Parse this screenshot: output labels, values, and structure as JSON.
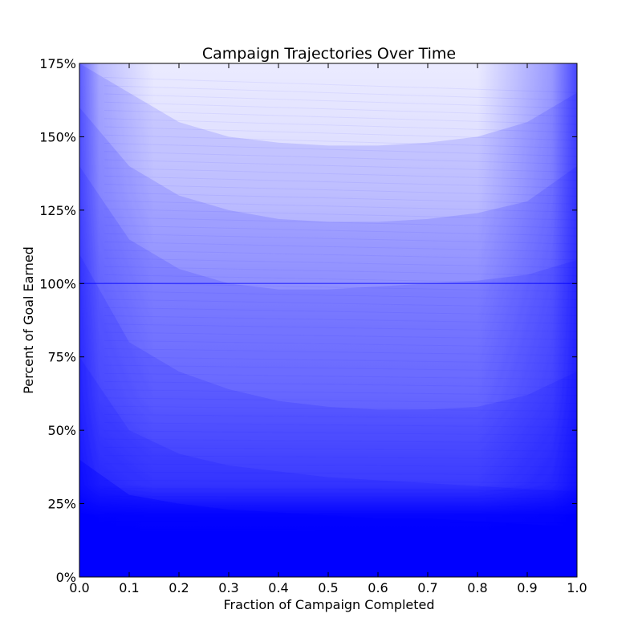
{
  "chart_data": {
    "type": "line",
    "title": "Campaign Trajectories Over Time",
    "xlabel": "Fraction of Campaign Completed",
    "ylabel": "Percent of Goal Earned",
    "xlim": [
      0.0,
      1.0
    ],
    "ylim": [
      0,
      175
    ],
    "x_ticks": [
      0.0,
      0.1,
      0.2,
      0.3,
      0.4,
      0.5,
      0.6,
      0.7,
      0.8,
      0.9,
      1.0
    ],
    "x_tick_labels": [
      "0.0",
      "0.1",
      "0.2",
      "0.3",
      "0.4",
      "0.5",
      "0.6",
      "0.7",
      "0.8",
      "0.9",
      "1.0"
    ],
    "y_ticks": [
      0,
      25,
      50,
      75,
      100,
      125,
      150,
      175
    ],
    "y_tick_labels": [
      "0%",
      "25%",
      "50%",
      "75%",
      "100%",
      "125%",
      "150%",
      "175%"
    ],
    "grid": false,
    "legend": "none",
    "series_color": "#0000ff",
    "reference_line": 100,
    "bands": [
      {
        "x": [
          0.0,
          0.1,
          0.2,
          0.3,
          0.4,
          0.5,
          0.6,
          0.7,
          0.8,
          0.9,
          1.0
        ],
        "y": [
          18,
          16,
          14,
          13,
          12,
          12,
          11,
          11,
          10,
          10,
          9
        ]
      },
      {
        "x": [
          0.0,
          0.1,
          0.2,
          0.3,
          0.4,
          0.5,
          0.6,
          0.7,
          0.8,
          0.9,
          1.0
        ],
        "y": [
          40,
          28,
          25,
          23,
          22,
          21,
          20,
          20,
          19,
          18,
          17
        ]
      },
      {
        "x": [
          0.0,
          0.1,
          0.2,
          0.3,
          0.4,
          0.5,
          0.6,
          0.7,
          0.8,
          0.9,
          1.0
        ],
        "y": [
          75,
          50,
          42,
          38,
          36,
          34,
          33,
          32,
          31,
          30,
          29
        ]
      },
      {
        "x": [
          0.0,
          0.1,
          0.2,
          0.3,
          0.4,
          0.5,
          0.6,
          0.7,
          0.8,
          0.9,
          1.0
        ],
        "y": [
          110,
          80,
          70,
          64,
          60,
          58,
          57,
          57,
          58,
          62,
          70
        ]
      },
      {
        "x": [
          0.0,
          0.1,
          0.2,
          0.3,
          0.4,
          0.5,
          0.6,
          0.7,
          0.8,
          0.9,
          1.0
        ],
        "y": [
          140,
          115,
          105,
          100,
          98,
          98,
          99,
          100,
          101,
          103,
          108
        ]
      },
      {
        "x": [
          0.0,
          0.1,
          0.2,
          0.3,
          0.4,
          0.5,
          0.6,
          0.7,
          0.8,
          0.9,
          1.0
        ],
        "y": [
          160,
          140,
          130,
          125,
          122,
          121,
          121,
          122,
          124,
          128,
          140
        ]
      },
      {
        "x": [
          0.0,
          0.1,
          0.2,
          0.3,
          0.4,
          0.5,
          0.6,
          0.7,
          0.8,
          0.9,
          1.0
        ],
        "y": [
          175,
          165,
          155,
          150,
          148,
          147,
          147,
          148,
          150,
          155,
          165
        ]
      }
    ]
  }
}
